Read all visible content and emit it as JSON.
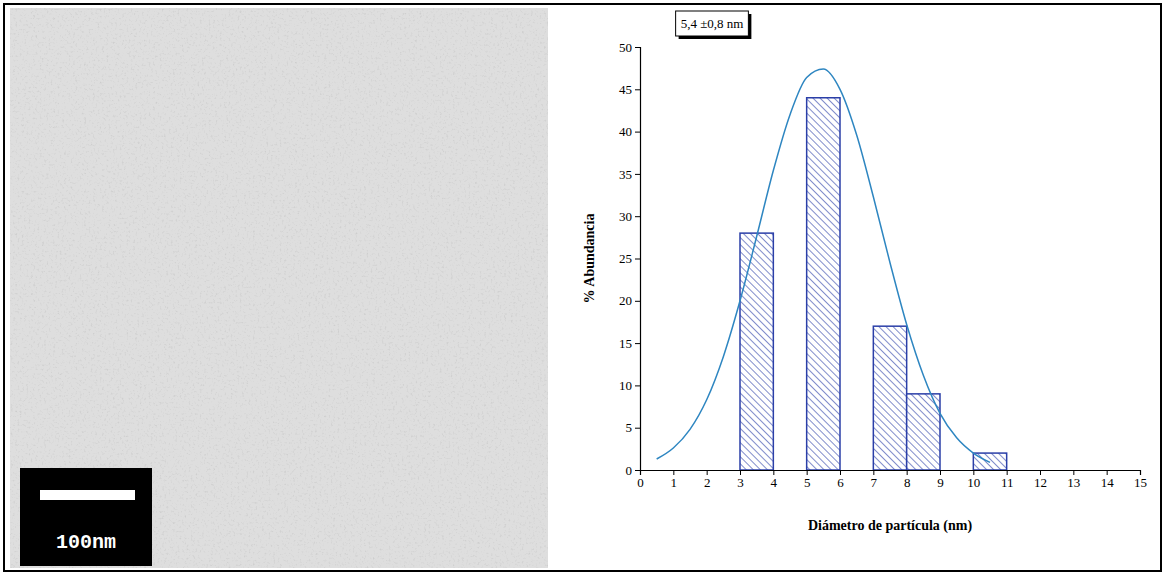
{
  "micrograph": {
    "scale_bar_label": "100nm"
  },
  "chart_data": {
    "type": "histogram",
    "annotation": "5,4 ±0,8 nm",
    "x_label": "Diámetro de partícula (nm)",
    "y_label": "% Abundancia",
    "bins": [
      3,
      4,
      5,
      6,
      7,
      8,
      9,
      10,
      11
    ],
    "counts": [
      28,
      0,
      44,
      0,
      17,
      9,
      0,
      2
    ],
    "color": "#2b3fa8",
    "xlim": [
      0,
      15
    ],
    "xticks": [
      0,
      1,
      2,
      3,
      4,
      5,
      6,
      7,
      8,
      9,
      10,
      11,
      12,
      13,
      14,
      15
    ],
    "ylim": [
      0,
      50
    ],
    "yticks": [
      0,
      5,
      10,
      15,
      20,
      25,
      30,
      35,
      40,
      45,
      50
    ],
    "fit": {
      "type": "line",
      "color": "#2e86c1",
      "x": [
        0.5,
        1.0,
        1.5,
        2.0,
        2.5,
        3.0,
        3.5,
        4.0,
        4.5,
        5.0,
        5.5,
        6.0,
        6.5,
        7.0,
        7.5,
        8.0,
        8.5,
        9.0,
        9.5,
        10.0,
        10.5
      ],
      "values": [
        1.3,
        2.6,
        4.8,
        8.3,
        13.4,
        20.0,
        27.6,
        35.4,
        42.0,
        46.4,
        47.4,
        45.0,
        39.6,
        32.3,
        24.5,
        17.2,
        11.2,
        6.7,
        3.8,
        2.0,
        0.9
      ]
    }
  }
}
